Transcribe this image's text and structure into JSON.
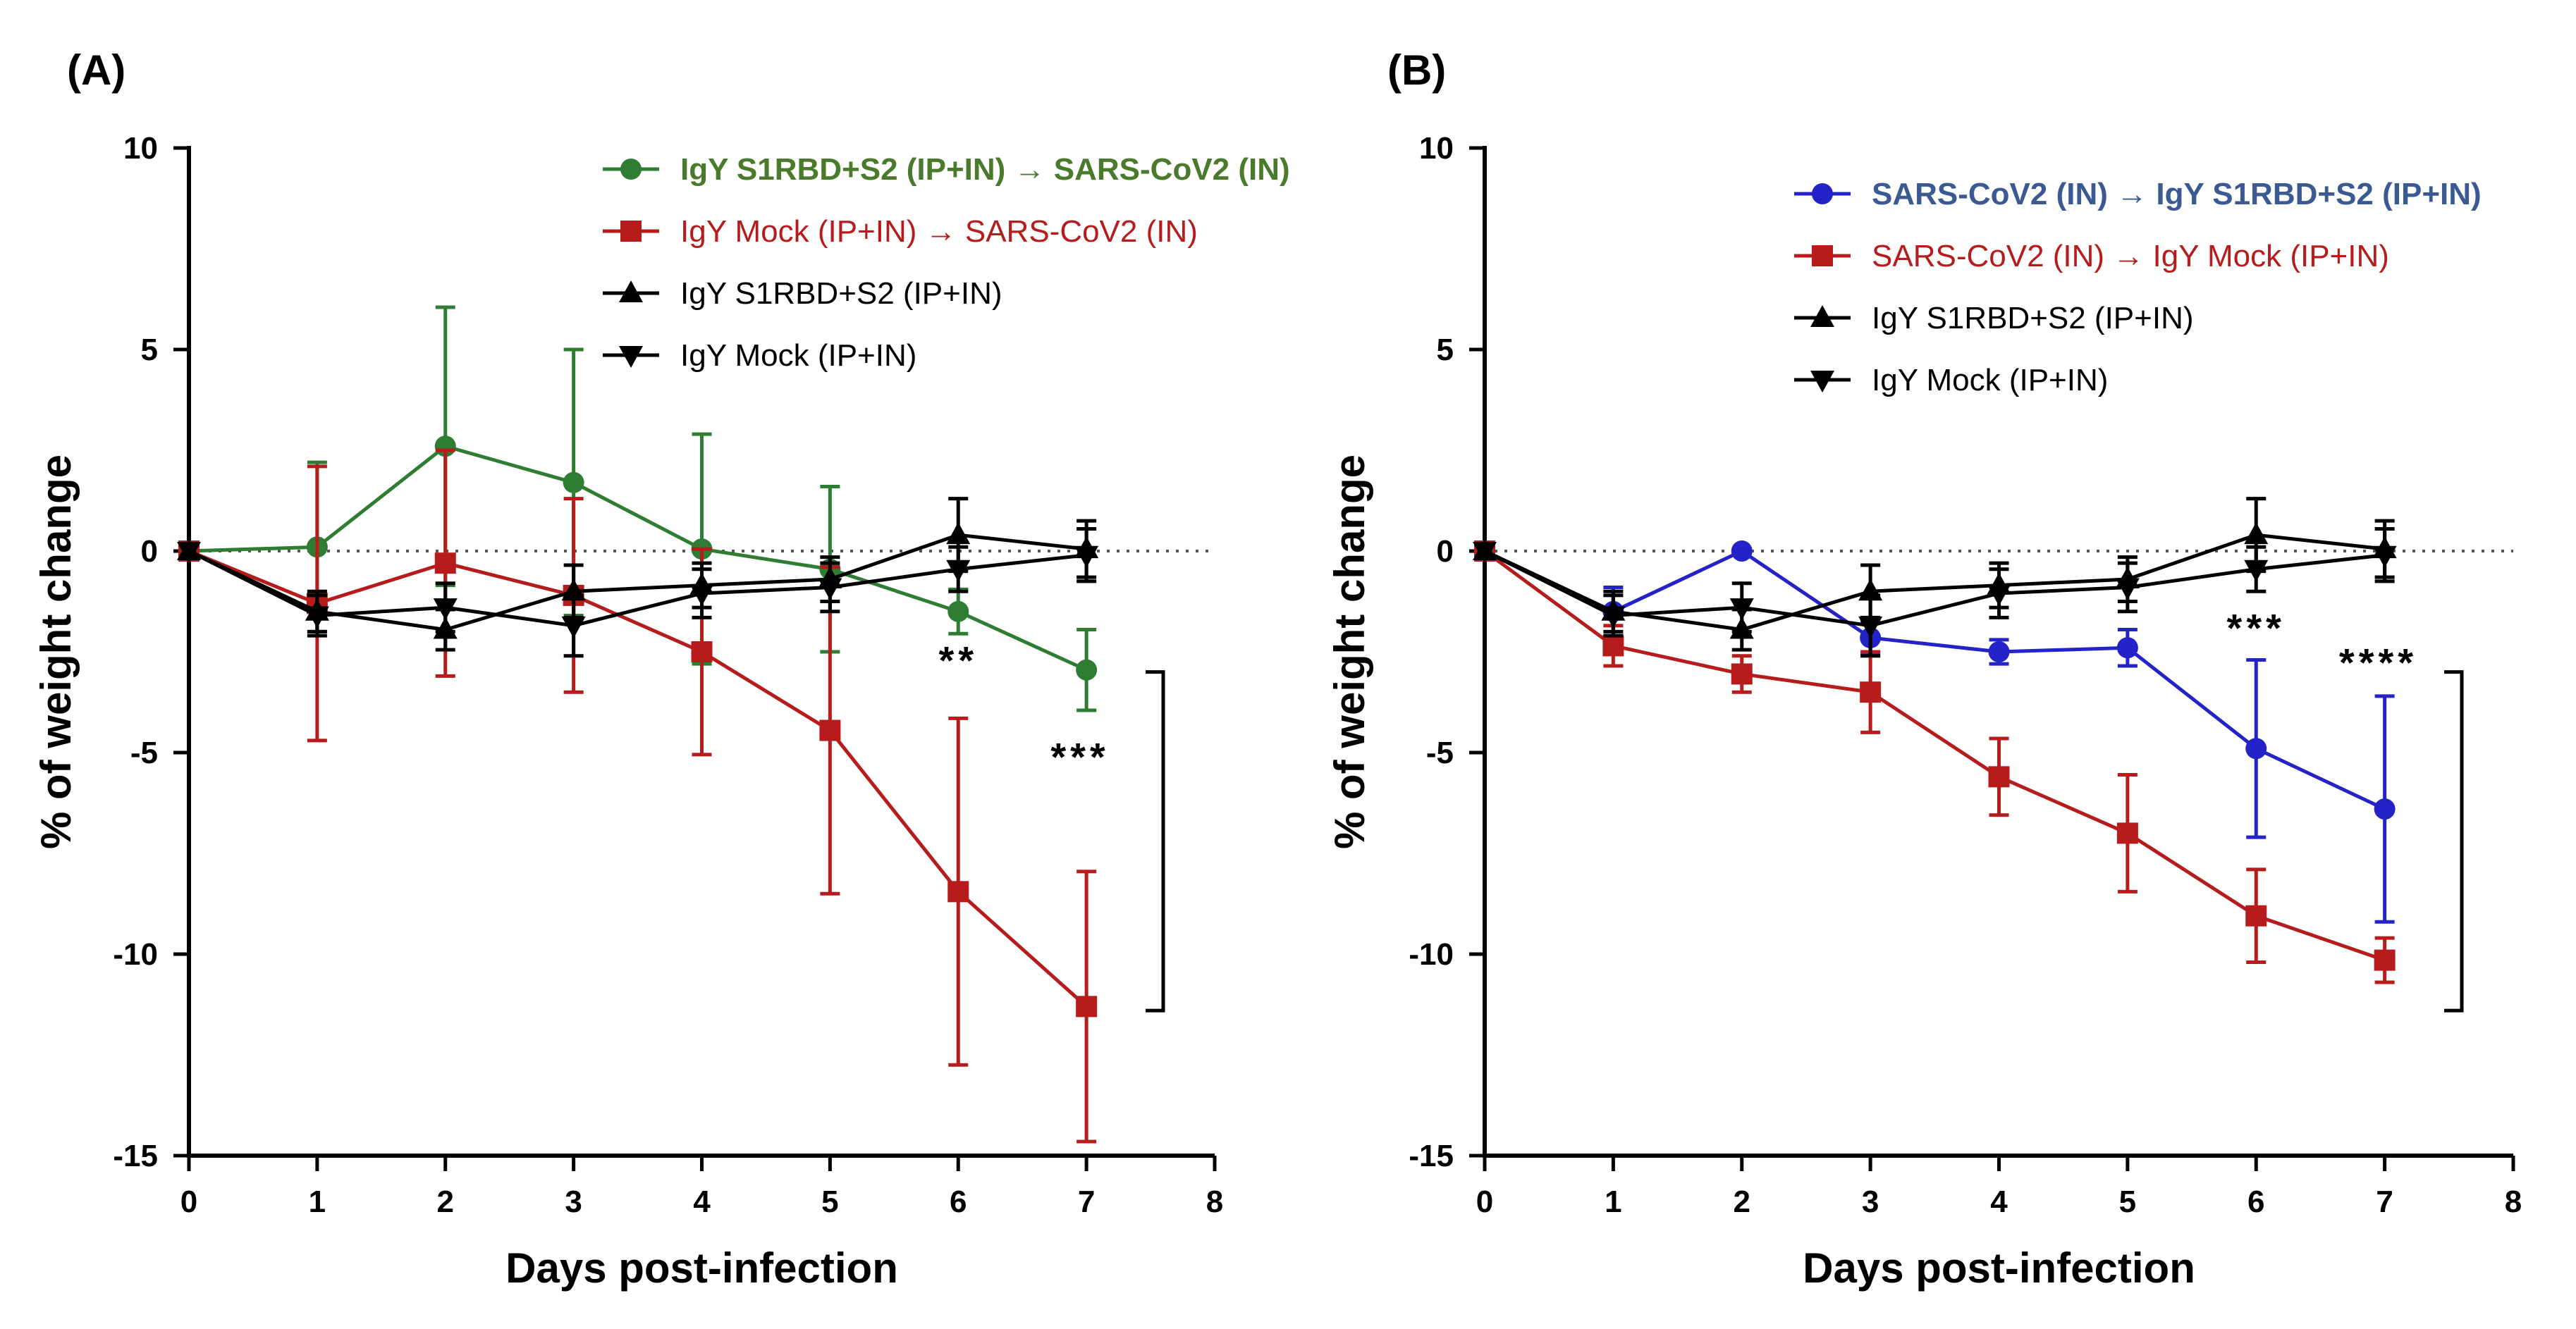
{
  "chart_data": [
    {
      "panel": "(A)",
      "type": "line",
      "xlabel": "Days post-infection",
      "ylabel": "% of weight change",
      "xlim": [
        0,
        8
      ],
      "ylim": [
        -15,
        10
      ],
      "xticks": [
        0,
        1,
        2,
        3,
        4,
        5,
        6,
        7,
        8
      ],
      "yticks": [
        10,
        5,
        0,
        -5,
        -10,
        -15
      ],
      "legend_position": "top-center",
      "series": [
        {
          "name": "IgY S1RBD+S2 (IP+IN) → SARS-CoV2 (IN)",
          "color": "#2e7d32",
          "legend_color": "#4a7a2c",
          "legend_bold": true,
          "marker": "circle",
          "x": [
            0,
            1,
            2,
            3,
            4,
            5,
            6,
            7
          ],
          "y": [
            0,
            0.1,
            2.6,
            1.7,
            0.05,
            -0.45,
            -1.5,
            -2.95
          ],
          "err": [
            0,
            2.1,
            3.45,
            3.3,
            2.85,
            2.05,
            0.55,
            1.0
          ]
        },
        {
          "name": "IgY Mock (IP+IN) → SARS-CoV2 (IN)",
          "color": "#b71c1c",
          "legend_color": "#b71c1c",
          "legend_bold": false,
          "marker": "square",
          "x": [
            0,
            1,
            2,
            3,
            4,
            5,
            6,
            7
          ],
          "y": [
            0,
            -1.3,
            -0.3,
            -1.1,
            -2.5,
            -4.45,
            -8.45,
            -11.3
          ],
          "err": [
            0,
            3.4,
            2.8,
            2.4,
            2.55,
            4.05,
            4.3,
            3.35
          ]
        },
        {
          "name": "IgY S1RBD+S2 (IP+IN)",
          "color": "#000000",
          "legend_color": "#000000",
          "legend_bold": false,
          "marker": "triangle-up",
          "x": [
            0,
            1,
            2,
            3,
            4,
            5,
            6,
            7
          ],
          "y": [
            0,
            -1.5,
            -1.95,
            -1.0,
            -0.85,
            -0.7,
            0.4,
            0.05
          ],
          "err": [
            0,
            0.5,
            0.5,
            0.65,
            0.55,
            0.55,
            0.9,
            0.7
          ]
        },
        {
          "name": "IgY Mock (IP+IN)",
          "color": "#000000",
          "legend_color": "#000000",
          "legend_bold": false,
          "marker": "triangle-down",
          "x": [
            0,
            1,
            2,
            3,
            4,
            5,
            6,
            7
          ],
          "y": [
            0,
            -1.6,
            -1.4,
            -1.85,
            -1.05,
            -0.9,
            -0.45,
            -0.1
          ],
          "err": [
            0,
            0.5,
            0.6,
            0.75,
            0.6,
            0.6,
            0.55,
            0.65
          ]
        }
      ],
      "annotations": [
        {
          "text": "**",
          "x": 6,
          "y": -3.05
        },
        {
          "text": "***",
          "x": 6.95,
          "y": -5.45
        }
      ],
      "bracket": {
        "y_top": -3.0,
        "y_bottom": -11.4
      }
    },
    {
      "panel": "(B)",
      "type": "line",
      "xlabel": "Days post-infection",
      "ylabel": "% of weight change",
      "xlim": [
        0,
        8
      ],
      "ylim": [
        -15,
        10
      ],
      "xticks": [
        0,
        1,
        2,
        3,
        4,
        5,
        6,
        7,
        8
      ],
      "yticks": [
        10,
        5,
        0,
        -5,
        -10,
        -15
      ],
      "legend_position": "top-center",
      "series": [
        {
          "name": "SARS-CoV2 (IN) → IgY S1RBD+S2 (IP+IN)",
          "color": "#2323c8",
          "legend_color": "#3b5a93",
          "legend_bold": true,
          "marker": "circle",
          "x": [
            0,
            1,
            2,
            3,
            4,
            5,
            6,
            7
          ],
          "y": [
            0,
            -1.5,
            0,
            -2.15,
            -2.5,
            -2.4,
            -4.9,
            -6.4
          ],
          "err": [
            0,
            0.6,
            0,
            0.4,
            0.3,
            0.45,
            2.2,
            2.8
          ]
        },
        {
          "name": "SARS-CoV2 (IN) → IgY Mock (IP+IN)",
          "color": "#b71c1c",
          "legend_color": "#b71c1c",
          "legend_bold": false,
          "marker": "square",
          "x": [
            0,
            1,
            2,
            3,
            4,
            5,
            6,
            7
          ],
          "y": [
            0,
            -2.35,
            -3.05,
            -3.5,
            -5.6,
            -7.0,
            -9.05,
            -10.15
          ],
          "err": [
            0,
            0.5,
            0.45,
            1.0,
            0.95,
            1.45,
            1.15,
            0.55
          ]
        },
        {
          "name": "IgY S1RBD+S2 (IP+IN)",
          "color": "#000000",
          "legend_color": "#000000",
          "legend_bold": false,
          "marker": "triangle-up",
          "x": [
            0,
            1,
            2,
            3,
            4,
            5,
            6,
            7
          ],
          "y": [
            0,
            -1.5,
            -1.95,
            -1.0,
            -0.85,
            -0.7,
            0.4,
            0.05
          ],
          "err": [
            0,
            0.5,
            0.5,
            0.65,
            0.55,
            0.55,
            0.9,
            0.7
          ]
        },
        {
          "name": "IgY Mock (IP+IN)",
          "color": "#000000",
          "legend_color": "#000000",
          "legend_bold": false,
          "marker": "triangle-down",
          "x": [
            0,
            1,
            2,
            3,
            4,
            5,
            6,
            7
          ],
          "y": [
            0,
            -1.6,
            -1.4,
            -1.85,
            -1.05,
            -0.9,
            -0.45,
            -0.1
          ],
          "err": [
            0,
            0.5,
            0.6,
            0.75,
            0.6,
            0.6,
            0.55,
            0.65
          ]
        }
      ],
      "annotations": [
        {
          "text": "***",
          "x": 6,
          "y": -2.25
        },
        {
          "text": "****",
          "x": 6.95,
          "y": -3.1
        }
      ],
      "bracket": {
        "y_top": -3.0,
        "y_bottom": -11.4
      }
    }
  ]
}
